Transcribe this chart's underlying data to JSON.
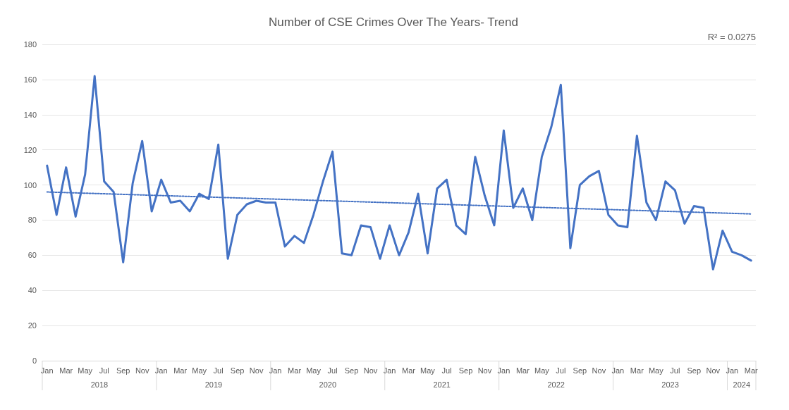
{
  "chart_data": {
    "type": "line",
    "title": "Number of CSE Crimes Over The Years- Trend",
    "categories": [
      "Jan",
      null,
      "Mar",
      null,
      "May",
      null,
      "Jul",
      null,
      "Sep",
      null,
      "Nov",
      null,
      "Jan",
      null,
      "Mar",
      null,
      "May",
      null,
      "Jul",
      null,
      "Sep",
      null,
      "Nov",
      null,
      "Jan",
      null,
      "Mar",
      null,
      "May",
      null,
      "Jul",
      null,
      "Sep",
      null,
      "Nov",
      null,
      "Jan",
      null,
      "Mar",
      null,
      "May",
      null,
      "Jul",
      null,
      "Sep",
      null,
      "Nov",
      null,
      "Jan",
      null,
      "Mar",
      null,
      "May",
      null,
      "Jul",
      null,
      "Sep",
      null,
      "Nov",
      null,
      "Jan",
      null,
      "Mar",
      null,
      "May",
      null,
      "Jul",
      null,
      "Sep",
      null,
      "Nov",
      null,
      "Jan",
      null,
      "Mar"
    ],
    "series": [
      {
        "color": "#4472c4",
        "line_style": "solid",
        "values": [
          111,
          83,
          110,
          82,
          106,
          162,
          102,
          96,
          56,
          101,
          125,
          85,
          103,
          90,
          91,
          85,
          95,
          92,
          123,
          58,
          83,
          89,
          91,
          90,
          90,
          65,
          71,
          67,
          83,
          102,
          119,
          61,
          60,
          77,
          76,
          58,
          77,
          60,
          73,
          95,
          61,
          98,
          103,
          77,
          72,
          116,
          94,
          77,
          131,
          87,
          98,
          80,
          116,
          133,
          157,
          64,
          100,
          105,
          108,
          83,
          77,
          76,
          128,
          90,
          80,
          102,
          97,
          78,
          88,
          87,
          52,
          74,
          62,
          60,
          57
        ]
      },
      {
        "color": "#4472c4",
        "line_style": "dotted",
        "values": [
          96,
          null,
          null,
          null,
          null,
          null,
          null,
          null,
          null,
          null,
          null,
          null,
          null,
          null,
          null,
          null,
          null,
          null,
          null,
          null,
          null,
          null,
          null,
          null,
          null,
          null,
          null,
          null,
          null,
          null,
          null,
          null,
          null,
          null,
          null,
          null,
          null,
          null,
          null,
          null,
          null,
          null,
          null,
          null,
          null,
          null,
          null,
          null,
          null,
          null,
          null,
          null,
          null,
          null,
          null,
          null,
          null,
          null,
          null,
          null,
          null,
          null,
          null,
          null,
          null,
          null,
          null,
          null,
          null,
          null,
          null,
          null,
          null,
          null,
          83.5
        ]
      }
    ],
    "annotations": [
      "R² = 0.0275",
      "2018",
      "2019",
      "2020",
      "2021",
      "2022",
      "2023",
      "2024"
    ],
    "ylim": [
      0,
      180
    ],
    "yticks": [
      0,
      20,
      40,
      60,
      80,
      100,
      120,
      140,
      160,
      180
    ],
    "grid": "y",
    "marker": "none"
  }
}
